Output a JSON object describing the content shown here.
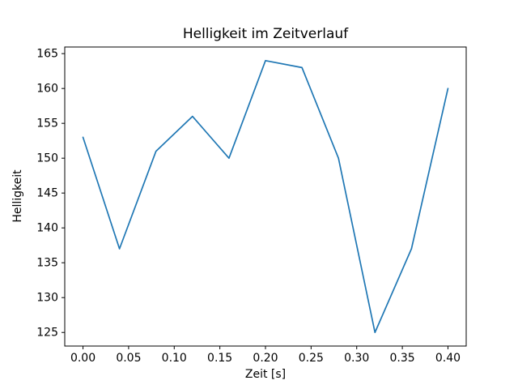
{
  "chart_data": {
    "type": "line",
    "title": "Helligkeit im Zeitverlauf",
    "xlabel": "Zeit [s]",
    "ylabel": "Helligkeit",
    "x": [
      0.0,
      0.04,
      0.08,
      0.12,
      0.16,
      0.2,
      0.24,
      0.28,
      0.32,
      0.36,
      0.4
    ],
    "y": [
      153,
      137,
      151,
      156,
      150,
      164,
      163,
      150,
      125,
      137,
      160
    ],
    "xlim": [
      -0.02,
      0.42
    ],
    "ylim": [
      123.05,
      165.95
    ],
    "xticks": [
      "0.00",
      "0.05",
      "0.10",
      "0.15",
      "0.20",
      "0.25",
      "0.30",
      "0.35",
      "0.40"
    ],
    "yticks": [
      125,
      130,
      135,
      140,
      145,
      150,
      155,
      160,
      165
    ],
    "line_color": "#1f77b4",
    "axis_color": "#000000",
    "background_color": "#ffffff",
    "grid": false,
    "legend_position": "none"
  }
}
